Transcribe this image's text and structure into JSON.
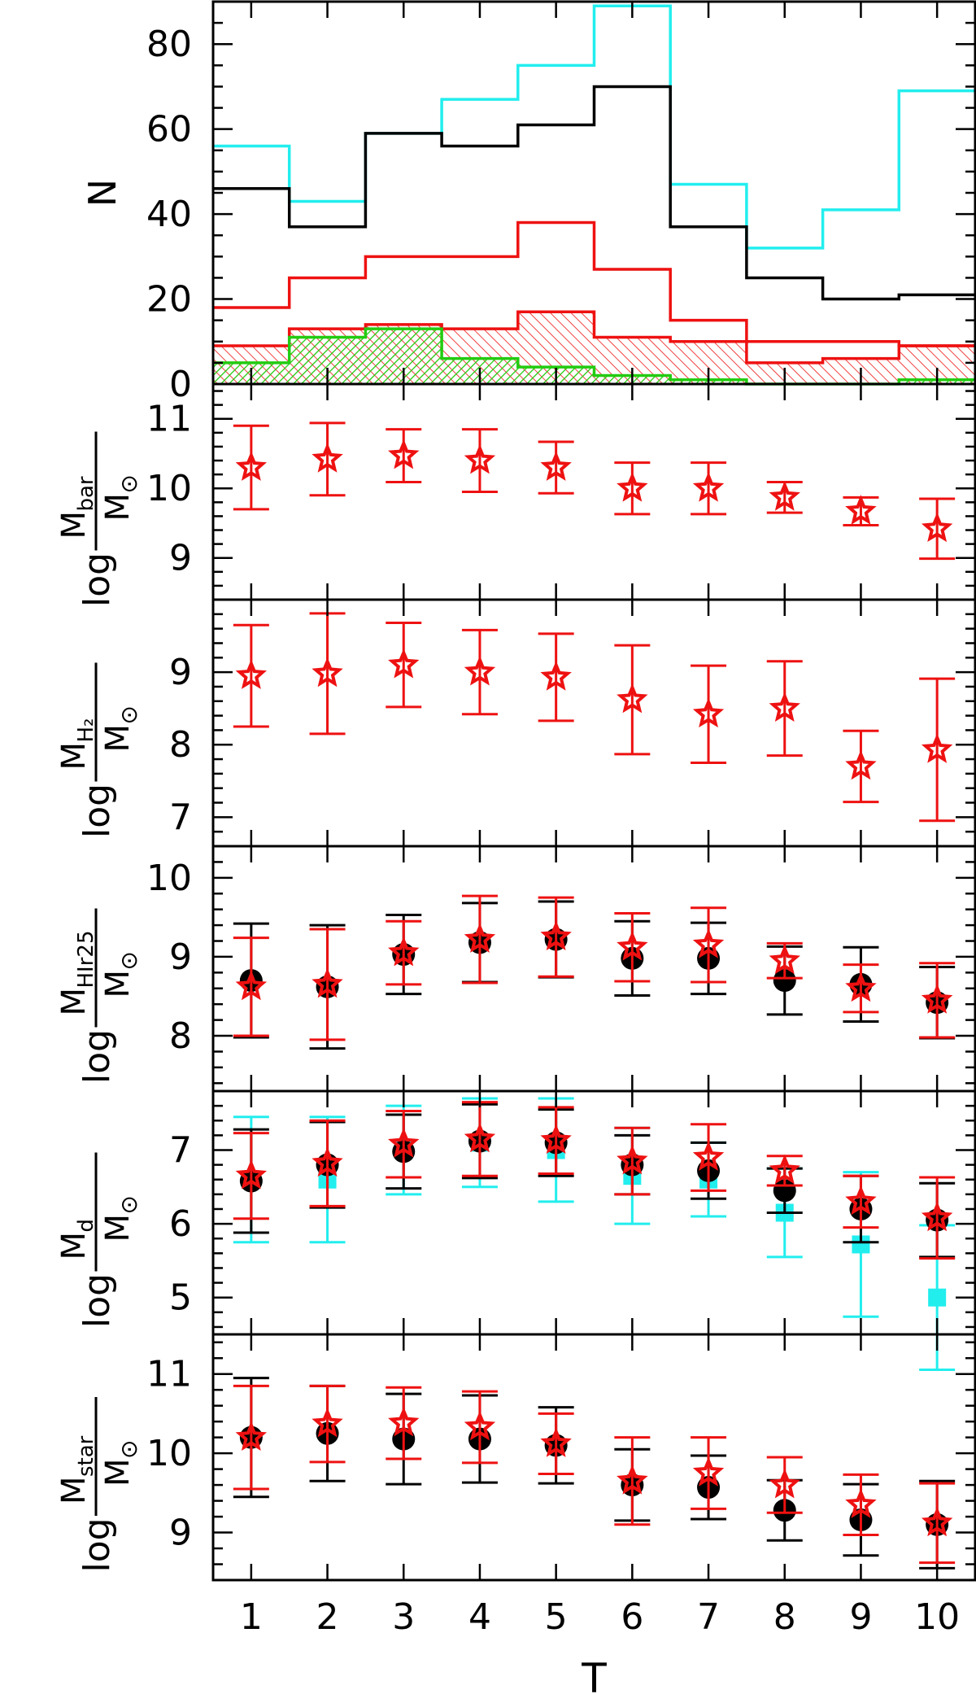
{
  "colors": {
    "black": "#000000",
    "cyan": "#22eeee",
    "red": "#ee1111",
    "green": "#22cc11",
    "frame": "#000000"
  },
  "chart_data": [
    {
      "id": "histogram",
      "type": "histogram",
      "ylabel": "N",
      "ylim": [
        0,
        90
      ],
      "yticks": [
        0,
        20,
        40,
        60,
        80
      ],
      "xlim": [
        0.5,
        10.5
      ],
      "bin_edges": [
        0.5,
        1.5,
        2.5,
        3.5,
        4.5,
        5.5,
        6.5,
        7.5,
        8.5,
        9.5,
        10.5
      ],
      "series": [
        {
          "color": "cyan",
          "style": "step",
          "values": [
            56,
            43,
            59,
            67,
            75,
            89,
            47,
            32,
            41,
            69
          ]
        },
        {
          "color": "black",
          "style": "step",
          "values": [
            46,
            37,
            59,
            56,
            61,
            70,
            37,
            25,
            20,
            21
          ]
        },
        {
          "color": "red",
          "style": "step",
          "values": [
            18,
            25,
            30,
            30,
            38,
            27,
            15,
            10,
            10,
            9
          ]
        },
        {
          "color": "red",
          "style": "hatched",
          "values": [
            9,
            13,
            14,
            13,
            17,
            11,
            10,
            5,
            6,
            9
          ]
        },
        {
          "color": "green",
          "style": "hatched",
          "values": [
            5,
            11,
            13,
            6,
            4,
            2,
            1,
            0,
            0,
            1
          ]
        }
      ]
    },
    {
      "id": "mbar",
      "type": "scatter",
      "ylabel_text": "log",
      "ylabel_num": "M",
      "ylabel_num_sub": "bar",
      "ylabel_den": "M",
      "ylabel_den_sub": "⊙",
      "ylim": [
        8.4,
        11.5
      ],
      "yticks": [
        9,
        10,
        11
      ],
      "series": [
        {
          "color": "red",
          "marker": "star",
          "x": [
            1,
            2,
            3,
            4,
            5,
            6,
            7,
            8,
            9,
            10
          ],
          "y": [
            10.3,
            10.42,
            10.47,
            10.4,
            10.3,
            10.0,
            10.0,
            9.87,
            9.67,
            9.42
          ],
          "err": [
            0.6,
            0.52,
            0.38,
            0.45,
            0.37,
            0.37,
            0.37,
            0.22,
            0.2,
            0.43
          ]
        }
      ]
    },
    {
      "id": "mh2",
      "type": "scatter",
      "ylabel_text": "log",
      "ylabel_num": "M",
      "ylabel_num_sub": "H₂",
      "ylabel_den": "M",
      "ylabel_den_sub": "⊙",
      "ylim": [
        6.6,
        10.0
      ],
      "yticks": [
        7,
        8,
        9
      ],
      "series": [
        {
          "color": "red",
          "marker": "star",
          "x": [
            1,
            2,
            3,
            4,
            5,
            6,
            7,
            8,
            9,
            10
          ],
          "y": [
            8.95,
            8.98,
            9.1,
            9.0,
            8.93,
            8.62,
            8.42,
            8.5,
            7.7,
            7.93
          ],
          "err": [
            0.7,
            0.83,
            0.58,
            0.58,
            0.6,
            0.75,
            0.67,
            0.65,
            0.49,
            0.98
          ]
        }
      ]
    },
    {
      "id": "mhi",
      "type": "scatter",
      "ylabel_text": "log",
      "ylabel_num": "M",
      "ylabel_num_sub": "HIr25",
      "ylabel_den": "M",
      "ylabel_den_sub": "⊙",
      "ylim": [
        7.3,
        10.4
      ],
      "yticks": [
        8,
        9,
        10
      ],
      "series": [
        {
          "color": "black",
          "marker": "circle",
          "x": [
            1,
            2,
            3,
            4,
            5,
            6,
            7,
            8,
            9,
            10
          ],
          "y": [
            8.7,
            8.62,
            9.03,
            9.18,
            9.22,
            8.98,
            8.98,
            8.7,
            8.65,
            8.42
          ],
          "err": [
            0.72,
            0.78,
            0.5,
            0.5,
            0.48,
            0.47,
            0.45,
            0.43,
            0.47,
            0.45
          ]
        },
        {
          "color": "red",
          "marker": "star",
          "x": [
            1,
            2,
            3,
            4,
            5,
            6,
            7,
            8,
            9,
            10
          ],
          "y": [
            8.62,
            8.65,
            9.05,
            9.22,
            9.25,
            9.12,
            9.15,
            8.95,
            8.6,
            8.45
          ],
          "err": [
            0.62,
            0.7,
            0.4,
            0.55,
            0.5,
            0.43,
            0.47,
            0.22,
            0.3,
            0.47
          ]
        }
      ]
    },
    {
      "id": "md",
      "type": "scatter",
      "ylabel_text": "log",
      "ylabel_num": "M",
      "ylabel_num_sub": "d",
      "ylabel_den": "M",
      "ylabel_den_sub": "⊙",
      "ylim": [
        4.5,
        7.8
      ],
      "yticks": [
        5,
        6,
        7
      ],
      "series": [
        {
          "color": "cyan",
          "marker": "square",
          "x": [
            1,
            2,
            3,
            4,
            5,
            6,
            7,
            8,
            9,
            10
          ],
          "y": [
            6.6,
            6.6,
            7.0,
            7.1,
            7.0,
            6.65,
            6.6,
            6.15,
            5.72,
            5.0
          ],
          "err": [
            0.85,
            0.85,
            0.6,
            0.6,
            0.7,
            0.65,
            0.5,
            0.6,
            0.98,
            0.98
          ]
        },
        {
          "color": "black",
          "marker": "circle",
          "x": [
            1,
            2,
            3,
            4,
            5,
            6,
            7,
            8,
            9,
            10
          ],
          "y": [
            6.58,
            6.8,
            6.98,
            7.12,
            7.1,
            6.8,
            6.72,
            6.45,
            6.2,
            6.05
          ],
          "err": [
            0.7,
            0.58,
            0.5,
            0.5,
            0.45,
            0.4,
            0.38,
            0.3,
            0.45,
            0.5
          ]
        },
        {
          "color": "red",
          "marker": "star",
          "x": [
            1,
            2,
            3,
            4,
            5,
            6,
            7,
            8,
            9,
            10
          ],
          "y": [
            6.65,
            6.82,
            7.08,
            7.15,
            7.13,
            6.85,
            6.9,
            6.72,
            6.3,
            6.08
          ],
          "err": [
            0.58,
            0.58,
            0.45,
            0.5,
            0.45,
            0.45,
            0.45,
            0.2,
            0.35,
            0.55
          ]
        }
      ]
    },
    {
      "id": "mstar",
      "type": "scatter",
      "ylabel_text": "log",
      "ylabel_num": "M",
      "ylabel_num_sub": "star",
      "ylabel_den": "M",
      "ylabel_den_sub": "⊙",
      "ylim": [
        8.4,
        11.5
      ],
      "yticks": [
        9,
        10,
        11
      ],
      "xlabel": "T",
      "xticks": [
        1,
        2,
        3,
        4,
        5,
        6,
        7,
        8,
        9,
        10
      ],
      "series": [
        {
          "color": "black",
          "marker": "circle",
          "x": [
            1,
            2,
            3,
            4,
            5,
            6,
            7,
            8,
            9,
            10
          ],
          "y": [
            10.2,
            10.25,
            10.18,
            10.18,
            10.1,
            9.6,
            9.57,
            9.28,
            9.16,
            9.1
          ],
          "err": [
            0.75,
            0.6,
            0.57,
            0.55,
            0.48,
            0.45,
            0.4,
            0.38,
            0.45,
            0.55
          ]
        },
        {
          "color": "red",
          "marker": "star",
          "x": [
            1,
            2,
            3,
            4,
            5,
            6,
            7,
            8,
            9,
            10
          ],
          "y": [
            10.2,
            10.37,
            10.38,
            10.33,
            10.12,
            9.65,
            9.75,
            9.6,
            9.35,
            9.12
          ],
          "err": [
            0.65,
            0.48,
            0.45,
            0.45,
            0.38,
            0.55,
            0.45,
            0.35,
            0.38,
            0.5
          ]
        }
      ]
    }
  ]
}
